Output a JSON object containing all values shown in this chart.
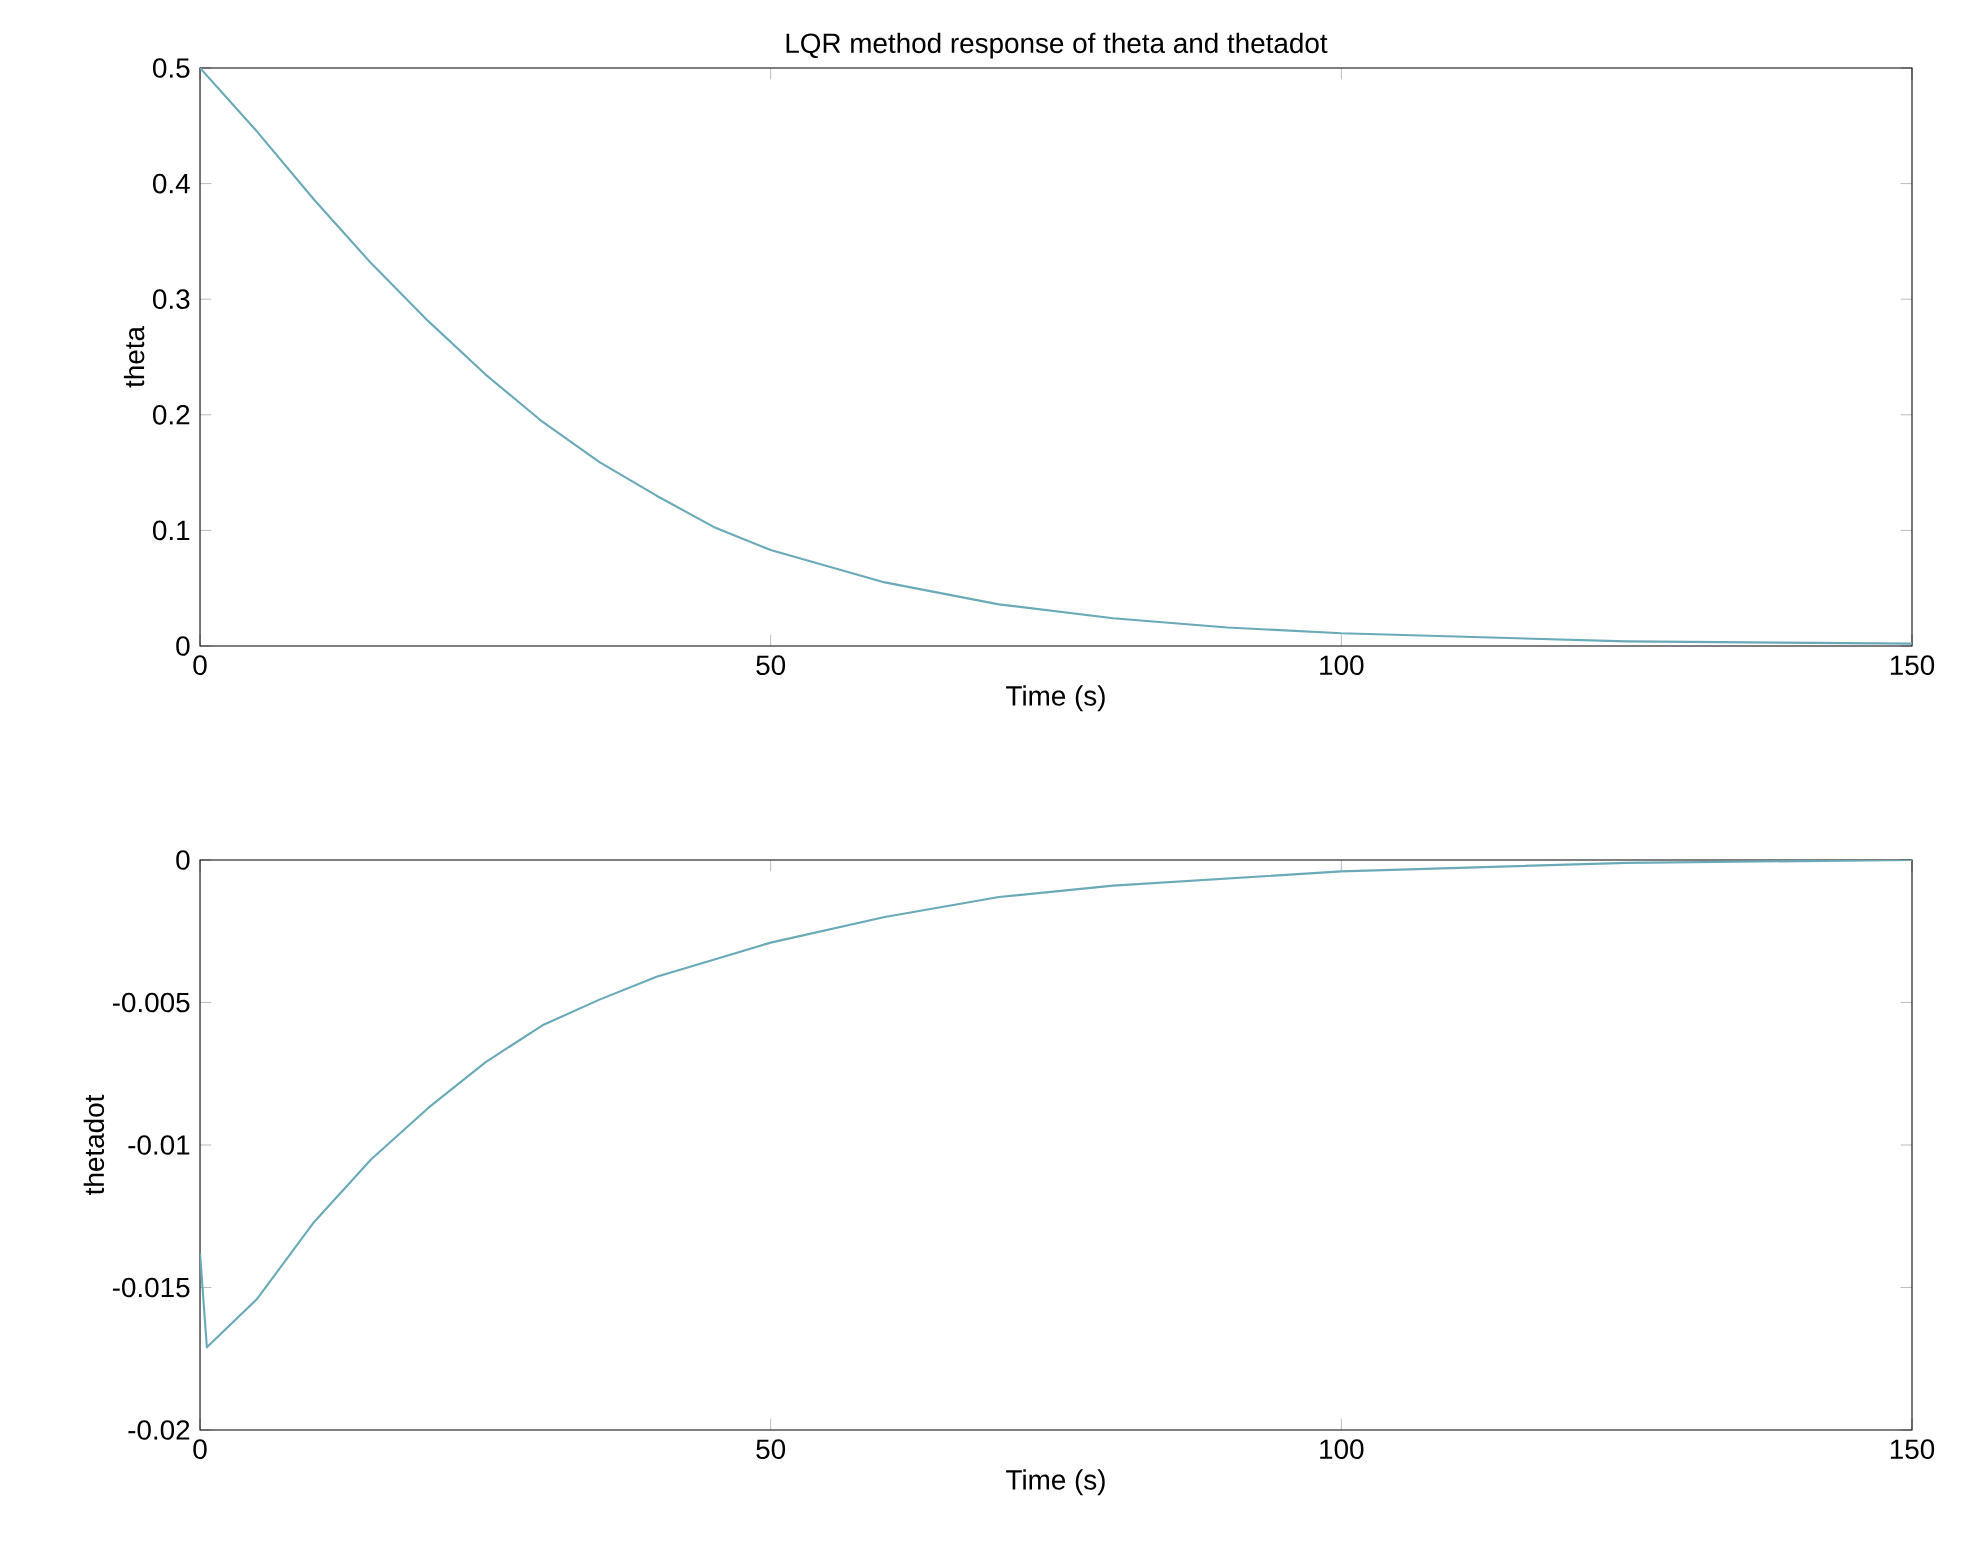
{
  "chart_data": [
    {
      "type": "line",
      "title": "LQR method response of theta and thetadot",
      "xlabel": "Time (s)",
      "ylabel": "theta",
      "color": "#6aaab8",
      "x": [
        0,
        5,
        10,
        15,
        20,
        25,
        30,
        35,
        40,
        45,
        50,
        60,
        70,
        80,
        90,
        100,
        125,
        150
      ],
      "values": [
        0.5,
        0.445,
        0.386,
        0.331,
        0.281,
        0.235,
        0.194,
        0.159,
        0.13,
        0.103,
        0.083,
        0.055,
        0.036,
        0.024,
        0.016,
        0.011,
        0.004,
        0.002
      ],
      "xlim": [
        0,
        150
      ],
      "ylim": [
        0,
        0.5
      ],
      "xticks": [
        0,
        50,
        100,
        150
      ],
      "yticks": [
        0,
        0.1,
        0.2,
        0.3,
        0.4,
        0.5
      ]
    },
    {
      "type": "line",
      "xlabel": "Time (s)",
      "ylabel": "thetadot",
      "color": "#6aaab8",
      "x": [
        0,
        0.6,
        5,
        10,
        15,
        20,
        25,
        30,
        35,
        40,
        45,
        50,
        60,
        70,
        80,
        100,
        125,
        150
      ],
      "values": [
        -0.0138,
        -0.0171,
        -0.0154,
        -0.0127,
        -0.0105,
        -0.0087,
        -0.0071,
        -0.0058,
        -0.0049,
        -0.0041,
        -0.0035,
        -0.0029,
        -0.002,
        -0.0013,
        -0.0009,
        -0.0004,
        -0.0001,
        0
      ],
      "xlim": [
        0,
        150
      ],
      "ylim": [
        -0.02,
        0
      ],
      "xticks": [
        0,
        50,
        100,
        150
      ],
      "yticks": [
        -0.02,
        -0.015,
        -0.01,
        -0.005,
        0
      ]
    }
  ]
}
